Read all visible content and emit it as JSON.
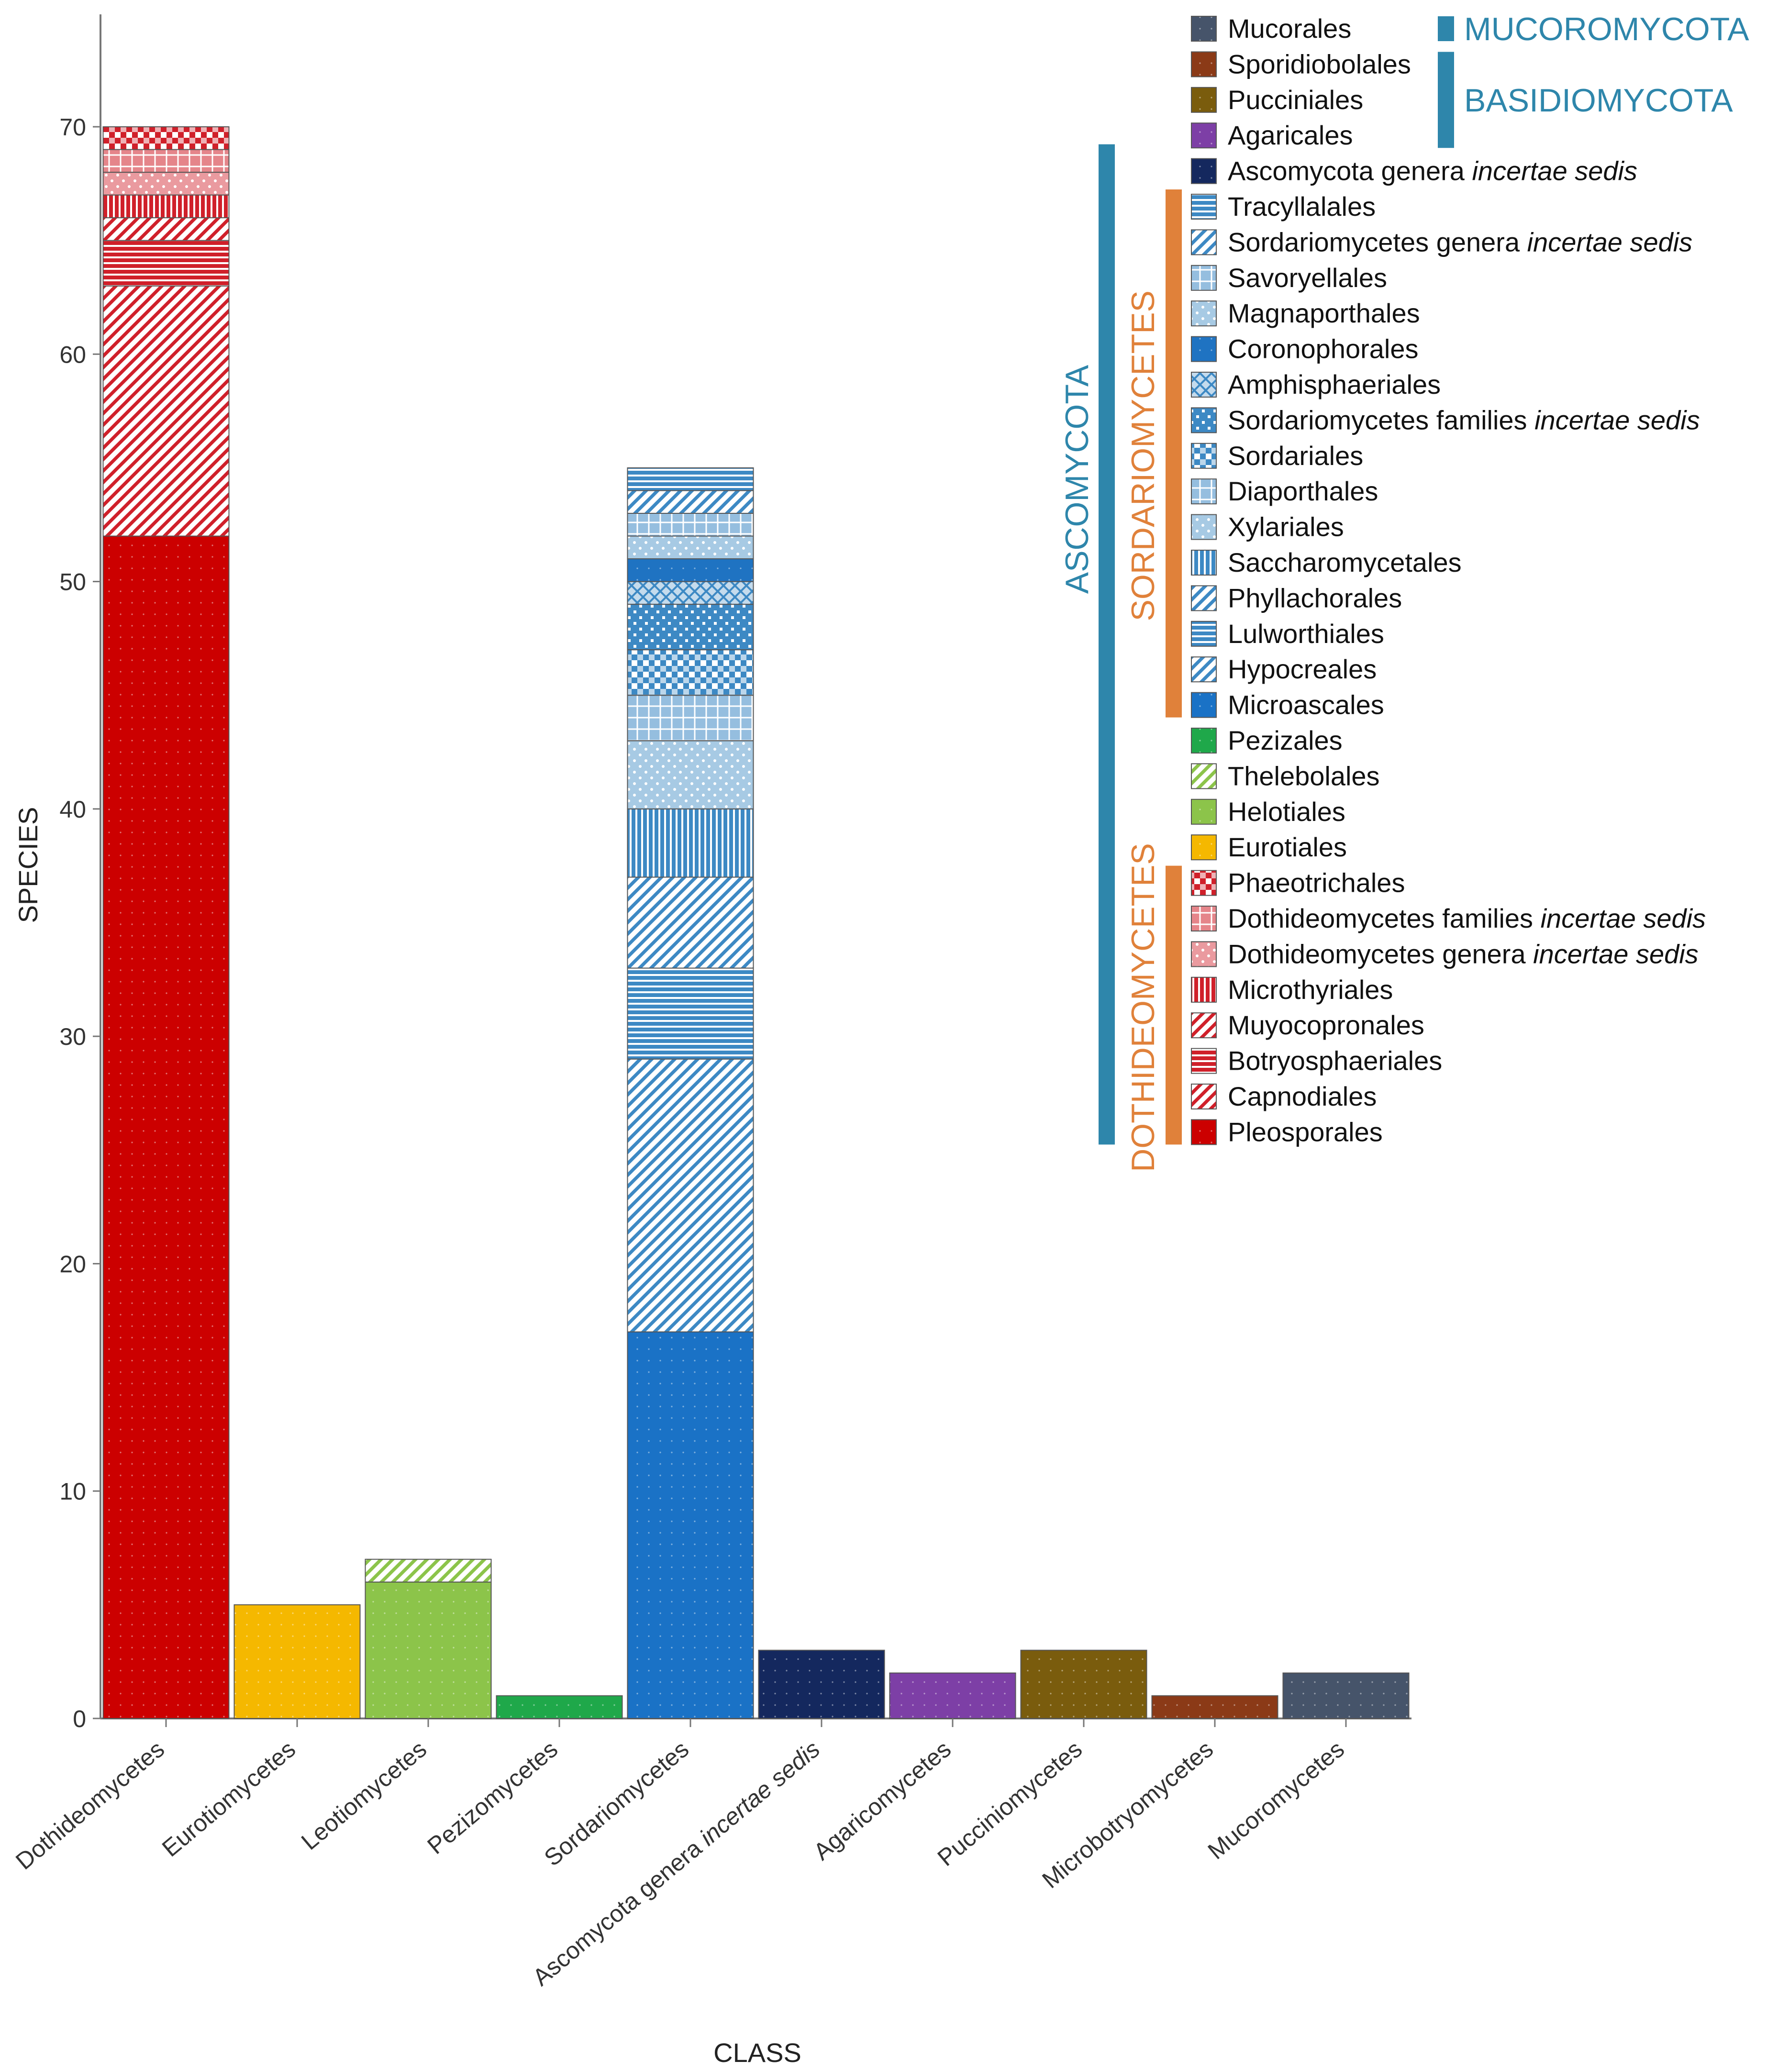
{
  "chart_data": {
    "type": "bar",
    "stacked": true,
    "xlabel": "CLASS",
    "ylabel": "SPECIES",
    "ylim": [
      0,
      75
    ],
    "yticks": [
      0,
      10,
      20,
      30,
      40,
      50,
      60,
      70
    ],
    "grid": false,
    "legend_position": "top-right",
    "categories": [
      {
        "label": "Dothideomycetes"
      },
      {
        "label": "Eurotiomycetes"
      },
      {
        "label": "Leotiomycetes"
      },
      {
        "label": "Pezizomycetes"
      },
      {
        "label": "Sordariomycetes"
      },
      {
        "label": "Ascomycota genera ",
        "label_italic": "incertae sedis"
      },
      {
        "label": "Agaricomycetes"
      },
      {
        "label": "Pucciniomycetes"
      },
      {
        "label": "Microbotryomycetes"
      },
      {
        "label": "Mucoromycetes"
      }
    ],
    "legend": [
      {
        "id": "mucorales",
        "name": "Mucorales",
        "color": "#46546a",
        "pattern": "none"
      },
      {
        "id": "sporidiobolales",
        "name": "Sporidiobolales",
        "color": "#8b3a17",
        "pattern": "none"
      },
      {
        "id": "pucciniales",
        "name": "Pucciniales",
        "color": "#7a5c0d",
        "pattern": "none"
      },
      {
        "id": "agaricales",
        "name": "Agaricales",
        "color": "#7d3fa6",
        "pattern": "none"
      },
      {
        "id": "asco-incertae",
        "name": "Ascomycota genera ",
        "italic": "incertae sedis",
        "color": "#14285e",
        "pattern": "none"
      },
      {
        "id": "tracyllalales",
        "name": "Tracyllalales",
        "color": "#3d89c4",
        "pattern": "hlines"
      },
      {
        "id": "sord-genera",
        "name": "Sordariomycetes genera ",
        "italic": "incertae sedis",
        "color": "#3d89c4",
        "pattern": "diag"
      },
      {
        "id": "savoryellales",
        "name": "Savoryellales",
        "color": "#3d89c4",
        "pattern": "grid"
      },
      {
        "id": "magnaporthales",
        "name": "Magnaporthales",
        "color": "#3d89c4",
        "pattern": "dots"
      },
      {
        "id": "coronophorales",
        "name": "Coronophorales",
        "color": "#1f73c2",
        "pattern": "none"
      },
      {
        "id": "amphisphaeriales",
        "name": "Amphisphaeriales",
        "color": "#3d89c4",
        "pattern": "cross"
      },
      {
        "id": "sord-families",
        "name": "Sordariomycetes families ",
        "italic": "incertae sedis",
        "color": "#3d89c4",
        "pattern": "bigdots"
      },
      {
        "id": "sordariales",
        "name": "Sordariales",
        "color": "#3d89c4",
        "pattern": "checker"
      },
      {
        "id": "diaporthales",
        "name": "Diaporthales",
        "color": "#3d89c4",
        "pattern": "grid"
      },
      {
        "id": "xylariales",
        "name": "Xylariales",
        "color": "#3d89c4",
        "pattern": "dots"
      },
      {
        "id": "saccharomycetales",
        "name": "Saccharomycetales",
        "color": "#3d89c4",
        "pattern": "vlines"
      },
      {
        "id": "phyllachorales",
        "name": "Phyllachorales",
        "color": "#3d89c4",
        "pattern": "diag"
      },
      {
        "id": "lulworthiales",
        "name": "Lulworthiales",
        "color": "#3d89c4",
        "pattern": "hlines"
      },
      {
        "id": "hypocreales",
        "name": "Hypocreales",
        "color": "#3d89c4",
        "pattern": "diag"
      },
      {
        "id": "microascales",
        "name": "Microascales",
        "color": "#1a72c6",
        "pattern": "none"
      },
      {
        "id": "pezizales",
        "name": "Pezizales",
        "color": "#1fa84a",
        "pattern": "none"
      },
      {
        "id": "thelebolales",
        "name": "Thelebolales",
        "color": "#8cc44a",
        "pattern": "diag"
      },
      {
        "id": "helotiales",
        "name": "Helotiales",
        "color": "#8cc44a",
        "pattern": "none"
      },
      {
        "id": "eurotiales",
        "name": "Eurotiales",
        "color": "#f5b800",
        "pattern": "none"
      },
      {
        "id": "phaeotrichales",
        "name": "Phaeotrichales",
        "color": "#d0202a",
        "pattern": "checker"
      },
      {
        "id": "dothi-families",
        "name": "Dothideomycetes families ",
        "italic": "incertae sedis",
        "color": "#d0202a",
        "pattern": "grid"
      },
      {
        "id": "dothi-genera",
        "name": "Dothideomycetes genera ",
        "italic": "incertae sedis",
        "color": "#d0202a",
        "pattern": "dots"
      },
      {
        "id": "microthyriales",
        "name": "Microthyriales",
        "color": "#d0202a",
        "pattern": "vlines"
      },
      {
        "id": "muyocopronales",
        "name": "Muyocopronales",
        "color": "#d0202a",
        "pattern": "diag"
      },
      {
        "id": "botryosphaeriales",
        "name": "Botryosphaeriales",
        "color": "#d0202a",
        "pattern": "hlines"
      },
      {
        "id": "capnodiales",
        "name": "Capnodiales",
        "color": "#d0202a",
        "pattern": "diag"
      },
      {
        "id": "pleosporales",
        "name": "Pleosporales",
        "color": "#cc0000",
        "pattern": "none"
      }
    ],
    "stacks": [
      [
        {
          "order": "pleosporales",
          "value": 52
        },
        {
          "order": "capnodiales",
          "value": 11
        },
        {
          "order": "botryosphaeriales",
          "value": 2
        },
        {
          "order": "muyocopronales",
          "value": 1
        },
        {
          "order": "microthyriales",
          "value": 1
        },
        {
          "order": "dothi-genera",
          "value": 1
        },
        {
          "order": "dothi-families",
          "value": 1
        },
        {
          "order": "phaeotrichales",
          "value": 1
        }
      ],
      [
        {
          "order": "eurotiales",
          "value": 5
        }
      ],
      [
        {
          "order": "helotiales",
          "value": 6
        },
        {
          "order": "thelebolales",
          "value": 1
        }
      ],
      [
        {
          "order": "pezizales",
          "value": 1
        }
      ],
      [
        {
          "order": "microascales",
          "value": 17
        },
        {
          "order": "hypocreales",
          "value": 12
        },
        {
          "order": "lulworthiales",
          "value": 4
        },
        {
          "order": "phyllachorales",
          "value": 4
        },
        {
          "order": "saccharomycetales",
          "value": 3
        },
        {
          "order": "xylariales",
          "value": 3
        },
        {
          "order": "diaporthales",
          "value": 2
        },
        {
          "order": "sordariales",
          "value": 2
        },
        {
          "order": "sord-families",
          "value": 2
        },
        {
          "order": "amphisphaeriales",
          "value": 1
        },
        {
          "order": "coronophorales",
          "value": 1
        },
        {
          "order": "magnaporthales",
          "value": 1
        },
        {
          "order": "savoryellales",
          "value": 1
        },
        {
          "order": "sord-genera",
          "value": 1
        },
        {
          "order": "tracyllalales",
          "value": 1
        }
      ],
      [
        {
          "order": "asco-incertae",
          "value": 3
        }
      ],
      [
        {
          "order": "agaricales",
          "value": 2
        }
      ],
      [
        {
          "order": "pucciniales",
          "value": 3
        }
      ],
      [
        {
          "order": "sporidiobolales",
          "value": 1
        }
      ],
      [
        {
          "order": "mucorales",
          "value": 2
        }
      ]
    ],
    "groups": [
      {
        "label": "MUCOROMYCOTA",
        "color": "#2e86ab",
        "from": "mucorales",
        "to": "mucorales",
        "level": "phylum"
      },
      {
        "label": "BASIDIOMYCOTA",
        "color": "#2e86ab",
        "from": "sporidiobolales",
        "to": "agaricales",
        "level": "phylum"
      },
      {
        "label": "ASCOMYCOTA",
        "color": "#2e86ab",
        "from": "asco-incertae",
        "to": "pleosporales",
        "level": "phylum"
      },
      {
        "label": "SORDARIOMYCETES",
        "color": "#e0813a",
        "from": "tracyllalales",
        "to": "microascales",
        "level": "class"
      },
      {
        "label": "DOTHIDEOMYCETES",
        "color": "#e0813a",
        "from": "phaeotrichales",
        "to": "pleosporales",
        "level": "class"
      }
    ]
  }
}
